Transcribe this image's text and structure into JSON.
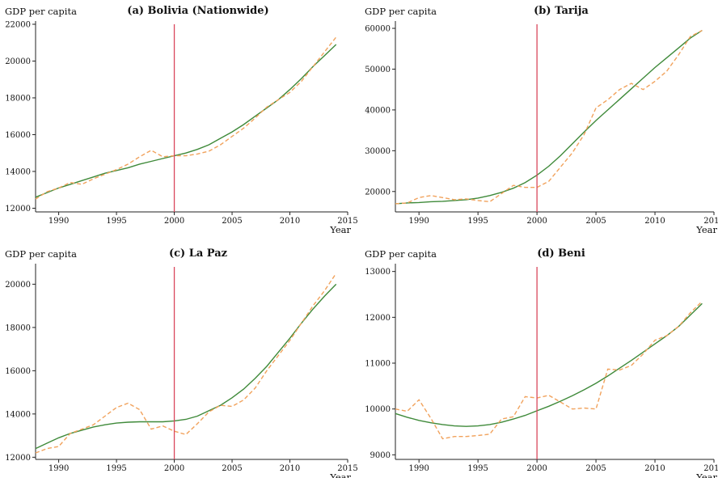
{
  "chart_data": [
    {
      "type": "line",
      "title": "(a) Bolivia (Nationwide)",
      "ylabel": "GDP per capita",
      "xlabel": "Year",
      "xlim": [
        1988,
        2015
      ],
      "ylim": [
        11800,
        22000
      ],
      "xticks": [
        1990,
        1995,
        2000,
        2005,
        2010,
        2015
      ],
      "yticks": [
        12000,
        14000,
        16000,
        18000,
        20000,
        22000
      ],
      "vline": 2000,
      "x": [
        1988,
        1989,
        1990,
        1991,
        1992,
        1993,
        1994,
        1995,
        1996,
        1997,
        1998,
        1999,
        2000,
        2001,
        2002,
        2003,
        2004,
        2005,
        2006,
        2007,
        2008,
        2009,
        2010,
        2011,
        2012,
        2013,
        2014
      ],
      "series": [
        {
          "style": "solid",
          "color": "#3f8a3a",
          "values": [
            12600,
            12850,
            13100,
            13300,
            13500,
            13700,
            13900,
            14050,
            14200,
            14400,
            14550,
            14700,
            14850,
            15000,
            15200,
            15450,
            15800,
            16150,
            16550,
            17000,
            17450,
            17900,
            18450,
            19050,
            19700,
            20300,
            20900
          ]
        },
        {
          "style": "dashed",
          "color": "#f1a25c",
          "values": [
            12500,
            12900,
            13100,
            13400,
            13300,
            13600,
            13850,
            14100,
            14400,
            14800,
            15150,
            14800,
            14850,
            14850,
            14950,
            15100,
            15450,
            15900,
            16350,
            16900,
            17500,
            17900,
            18300,
            18900,
            19700,
            20500,
            21300
          ]
        }
      ]
    },
    {
      "type": "line",
      "title": "(b) Tarija",
      "ylabel": "GDP per capita",
      "xlabel": "Year",
      "xlim": [
        1988,
        2015
      ],
      "ylim": [
        15000,
        61000
      ],
      "xticks": [
        1990,
        1995,
        2000,
        2005,
        2010,
        2015
      ],
      "yticks": [
        20000,
        30000,
        40000,
        50000,
        60000
      ],
      "vline": 2000,
      "x": [
        1988,
        1989,
        1990,
        1991,
        1992,
        1993,
        1994,
        1995,
        1996,
        1997,
        1998,
        1999,
        2000,
        2001,
        2002,
        2003,
        2004,
        2005,
        2006,
        2007,
        2008,
        2009,
        2010,
        2011,
        2012,
        2013,
        2014
      ],
      "series": [
        {
          "style": "solid",
          "color": "#3f8a3a",
          "values": [
            17000,
            17200,
            17300,
            17500,
            17600,
            17800,
            18000,
            18400,
            19000,
            19800,
            20800,
            22200,
            24000,
            26200,
            28800,
            31700,
            34600,
            37400,
            40000,
            42600,
            45200,
            47800,
            50400,
            52800,
            55200,
            57600,
            59500
          ]
        },
        {
          "style": "dashed",
          "color": "#f1a25c",
          "values": [
            17000,
            17200,
            18500,
            19000,
            18500,
            18000,
            18200,
            17800,
            17500,
            19500,
            21500,
            21000,
            21000,
            22500,
            26000,
            29500,
            34000,
            40500,
            42500,
            45000,
            46500,
            45000,
            47000,
            49500,
            53500,
            58000,
            59500
          ]
        }
      ]
    },
    {
      "type": "line",
      "title": "(c) La Paz",
      "ylabel": "GDP per capita",
      "xlabel": "Year",
      "xlim": [
        1988,
        2015
      ],
      "ylim": [
        11900,
        20800
      ],
      "xticks": [
        1990,
        1995,
        2000,
        2005,
        2010,
        2015
      ],
      "yticks": [
        12000,
        14000,
        16000,
        18000,
        20000
      ],
      "vline": 2000,
      "x": [
        1988,
        1989,
        1990,
        1991,
        1992,
        1993,
        1994,
        1995,
        1996,
        1997,
        1998,
        1999,
        2000,
        2001,
        2002,
        2003,
        2004,
        2005,
        2006,
        2007,
        2008,
        2009,
        2010,
        2011,
        2012,
        2013,
        2014
      ],
      "series": [
        {
          "style": "solid",
          "color": "#3f8a3a",
          "values": [
            12400,
            12650,
            12900,
            13100,
            13250,
            13400,
            13500,
            13580,
            13620,
            13640,
            13640,
            13640,
            13680,
            13750,
            13900,
            14150,
            14400,
            14750,
            15150,
            15650,
            16200,
            16850,
            17500,
            18200,
            18850,
            19450,
            20000
          ]
        },
        {
          "style": "dashed",
          "color": "#f1a25c",
          "values": [
            12200,
            12400,
            12500,
            13100,
            13300,
            13500,
            13900,
            14300,
            14500,
            14200,
            13300,
            13450,
            13200,
            13050,
            13550,
            14100,
            14400,
            14350,
            14650,
            15200,
            16000,
            16700,
            17400,
            18200,
            19000,
            19700,
            20500
          ]
        }
      ]
    },
    {
      "type": "line",
      "title": "(d) Beni",
      "ylabel": "GDP per capita",
      "xlabel": "Year",
      "xlim": [
        1988,
        2015
      ],
      "ylim": [
        8900,
        13100
      ],
      "xticks": [
        1990,
        1995,
        2000,
        2005,
        2010,
        2015
      ],
      "yticks": [
        9000,
        10000,
        11000,
        12000,
        13000
      ],
      "vline": 2000,
      "x": [
        1988,
        1989,
        1990,
        1991,
        1992,
        1993,
        1994,
        1995,
        1996,
        1997,
        1998,
        1999,
        2000,
        2001,
        2002,
        2003,
        2004,
        2005,
        2006,
        2007,
        2008,
        2009,
        2010,
        2011,
        2012,
        2013,
        2014
      ],
      "series": [
        {
          "style": "solid",
          "color": "#3f8a3a",
          "values": [
            9900,
            9820,
            9750,
            9700,
            9660,
            9630,
            9620,
            9630,
            9660,
            9710,
            9780,
            9860,
            9960,
            10060,
            10170,
            10290,
            10420,
            10560,
            10720,
            10890,
            11060,
            11240,
            11420,
            11600,
            11800,
            12050,
            12300
          ]
        },
        {
          "style": "dashed",
          "color": "#f1a25c",
          "values": [
            10000,
            9950,
            10200,
            9800,
            9350,
            9400,
            9400,
            9420,
            9450,
            9780,
            9830,
            10270,
            10240,
            10300,
            10150,
            10000,
            10020,
            10000,
            10870,
            10850,
            10950,
            11200,
            11500,
            11600,
            11800,
            12100,
            12350
          ]
        }
      ]
    }
  ]
}
